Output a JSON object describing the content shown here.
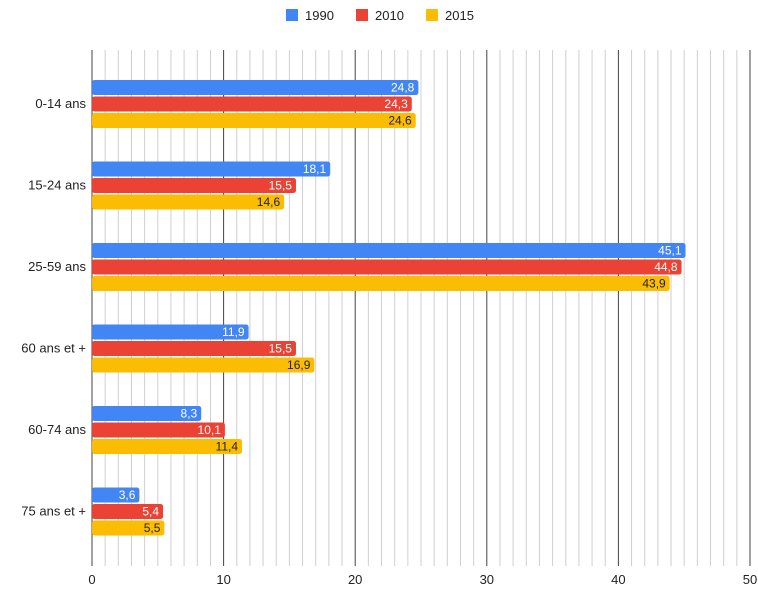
{
  "chart_data": {
    "type": "bar",
    "orientation": "horizontal",
    "categories": [
      "0-14 ans",
      "15-24 ans",
      "25-59 ans",
      "60 ans et +",
      "60-74 ans",
      "75 ans et +"
    ],
    "series": [
      {
        "name": "1990",
        "color": "#4285F4",
        "label_color": "#ffffff",
        "values": [
          24.8,
          18.1,
          45.1,
          11.9,
          8.3,
          3.6
        ],
        "labels": [
          "24,8",
          "18,1",
          "45,1",
          "11,9",
          "8,3",
          "3,6"
        ]
      },
      {
        "name": "2010",
        "color": "#EA4335",
        "label_color": "#ffffff",
        "values": [
          24.3,
          15.5,
          44.8,
          15.5,
          10.1,
          5.4
        ],
        "labels": [
          "24,3",
          "15,5",
          "44,8",
          "15,5",
          "10,1",
          "5,4"
        ]
      },
      {
        "name": "2015",
        "color": "#FBBC04",
        "label_color": "#222222",
        "values": [
          24.6,
          14.6,
          43.9,
          16.9,
          11.4,
          5.5
        ],
        "labels": [
          "24,6",
          "14,6",
          "43,9",
          "16,9",
          "11,4",
          "5,5"
        ]
      }
    ],
    "xlim": [
      0,
      50
    ],
    "x_ticks": [
      "0",
      "10",
      "20",
      "30",
      "40",
      "50"
    ],
    "minor_grid_step": 1,
    "grid": true,
    "legend_position": "top"
  }
}
